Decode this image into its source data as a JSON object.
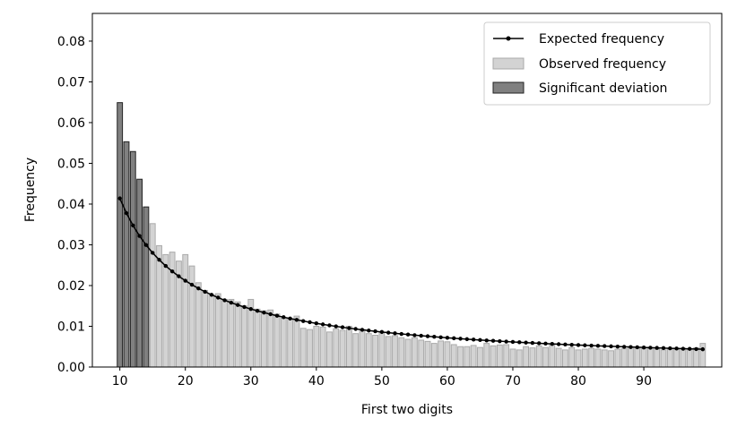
{
  "chart_data": {
    "type": "bar",
    "xlabel": "First two digits",
    "ylabel": "Frequency",
    "xlim": [
      5.8,
      101.9
    ],
    "ylim": [
      0,
      0.0868
    ],
    "xticks": [
      10,
      20,
      30,
      40,
      50,
      60,
      70,
      80,
      90
    ],
    "yticks": [
      0.0,
      0.01,
      0.02,
      0.03,
      0.04,
      0.05,
      0.06,
      0.07,
      0.08
    ],
    "ytick_labels": [
      "0.00",
      "0.01",
      "0.02",
      "0.03",
      "0.04",
      "0.05",
      "0.06",
      "0.07",
      "0.08"
    ],
    "legend_position": "top-right",
    "legend": [
      "Expected frequency",
      "Observed frequency",
      "Significant deviation"
    ],
    "colors": {
      "expected": "#000000",
      "observed": "#d3d3d3",
      "significant": "#808080"
    },
    "significant_digits": [
      10,
      11,
      12,
      13,
      14
    ],
    "x_start": 10,
    "observed": [
      0.0649,
      0.0553,
      0.0529,
      0.0461,
      0.0393,
      0.0352,
      0.0298,
      0.0276,
      0.0282,
      0.026,
      0.0276,
      0.0248,
      0.0207,
      0.0188,
      0.0178,
      0.018,
      0.0166,
      0.0166,
      0.016,
      0.015,
      0.0166,
      0.0142,
      0.0138,
      0.014,
      0.013,
      0.012,
      0.0118,
      0.0125,
      0.0095,
      0.0092,
      0.01,
      0.0098,
      0.0086,
      0.0094,
      0.009,
      0.01,
      0.0082,
      0.0092,
      0.0082,
      0.0078,
      0.0085,
      0.0075,
      0.0077,
      0.0072,
      0.0068,
      0.0072,
      0.0066,
      0.0063,
      0.0058,
      0.0064,
      0.0062,
      0.0055,
      0.005,
      0.005,
      0.0053,
      0.0048,
      0.0058,
      0.0052,
      0.0054,
      0.0055,
      0.0044,
      0.0042,
      0.005,
      0.0047,
      0.0052,
      0.0048,
      0.0054,
      0.0046,
      0.0042,
      0.0048,
      0.0042,
      0.0044,
      0.0046,
      0.0044,
      0.0042,
      0.004,
      0.0044,
      0.0045,
      0.0048,
      0.0046,
      0.0045,
      0.0046,
      0.0044,
      0.0042,
      0.0044,
      0.0043,
      0.0046,
      0.0045,
      0.0047,
      0.0058
    ]
  }
}
